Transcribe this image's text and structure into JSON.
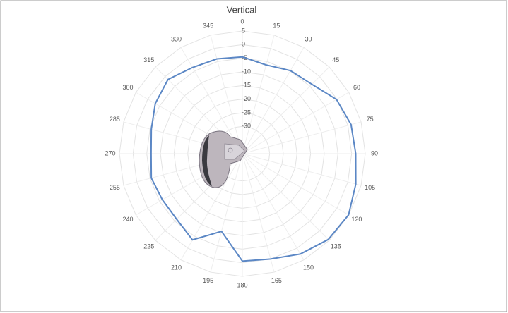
{
  "chart_data": {
    "type": "radar",
    "title": "Vertical",
    "categories": [
      "0",
      "15",
      "30",
      "45",
      "60",
      "75",
      "90",
      "105",
      "120",
      "135",
      "150",
      "165",
      "180",
      "195",
      "210",
      "225",
      "240",
      "255",
      "270",
      "285",
      "300",
      "315",
      "330",
      "345"
    ],
    "series": [
      {
        "name": "Vertical",
        "color": "#5b87c5",
        "values": [
          -4.5,
          -6.3,
          -4.8,
          -4,
          -0.2,
          1.2,
          1.5,
          3,
          4.9,
          4.5,
          2.5,
          0,
          -0.6,
          -10.5,
          -3.5,
          -6,
          -6.2,
          -5.5,
          -6.6,
          -5.5,
          -3.2,
          -1.5,
          -3.5,
          -4
        ]
      }
    ],
    "ylim": [
      -40,
      5
    ],
    "yticks": [
      5,
      0,
      -5,
      -10,
      -15,
      -20,
      -25,
      -30
    ],
    "grid": true
  }
}
